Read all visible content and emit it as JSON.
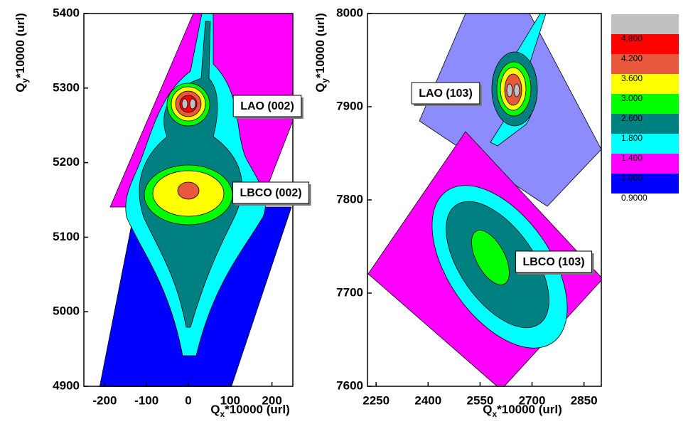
{
  "chart_data": [
    {
      "type": "contour",
      "xlabel": [
        "Q",
        "x",
        "*10000 (url)"
      ],
      "ylabel": [
        "Q",
        "y",
        "*10000 (url)"
      ],
      "xlim": [
        -250,
        250
      ],
      "ylim": [
        4900,
        5400
      ],
      "xticks": [
        -200,
        -100,
        0,
        100,
        200
      ],
      "yticks": [
        4900,
        5000,
        5100,
        5200,
        5300,
        5400
      ],
      "annotations": [
        "LAO (002)",
        "LBCO (002)"
      ]
    },
    {
      "type": "contour",
      "xlabel": [
        "Q",
        "x",
        "*10000 (url)"
      ],
      "ylabel": [
        "Q",
        "y",
        "*10000 (url)"
      ],
      "xlim": [
        2225,
        2900
      ],
      "ylim": [
        7600,
        8000
      ],
      "xticks": [
        2250,
        2400,
        2550,
        2700,
        2850
      ],
      "yticks": [
        7600,
        7700,
        7800,
        7900,
        8000
      ],
      "annotations": [
        "LAO (103)",
        "LBCO (103)"
      ]
    }
  ],
  "colorbar": {
    "levels": [
      {
        "value": 0.9,
        "label": "0.9000"
      },
      {
        "value": 1.0,
        "label": "1.000"
      },
      {
        "value": 1.4,
        "label": "1.400"
      },
      {
        "value": 1.8,
        "label": "1.800"
      },
      {
        "value": 2.6,
        "label": "2.600"
      },
      {
        "value": 3.0,
        "label": "3.000"
      },
      {
        "value": 3.6,
        "label": "3.600"
      },
      {
        "value": 4.2,
        "label": "4.200"
      },
      {
        "value": 4.8,
        "label": "4.800"
      }
    ],
    "colors": [
      "#0000ff",
      "#ff00ff",
      "#00ffff",
      "#008080",
      "#00ff00",
      "#ffff00",
      "#e8583c",
      "#ff0000",
      "#c0c0c0"
    ]
  }
}
